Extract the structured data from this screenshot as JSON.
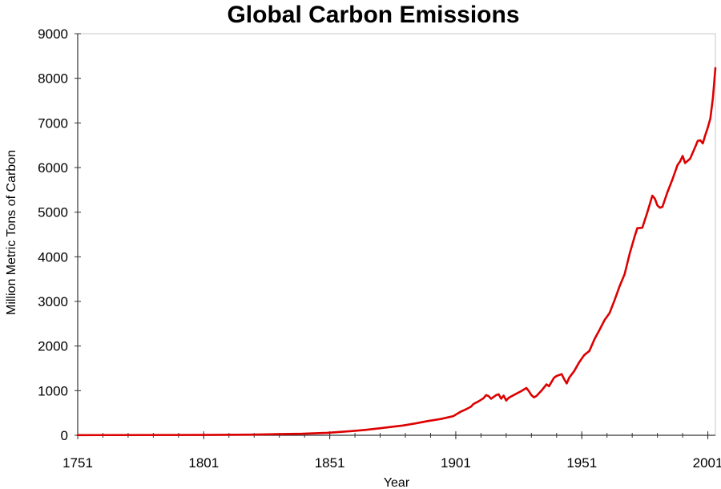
{
  "chart_data": {
    "type": "line",
    "title": "Global Carbon Emissions",
    "xlabel": "Year",
    "ylabel": "Million Metric Tons of Carbon",
    "xlim": [
      1751,
      2004
    ],
    "ylim": [
      0,
      9000
    ],
    "x_ticks": [
      1751,
      1801,
      1851,
      1901,
      1951,
      2001
    ],
    "y_ticks": [
      0,
      1000,
      2000,
      3000,
      4000,
      5000,
      6000,
      7000,
      8000,
      9000
    ],
    "grid": false,
    "legend": "none",
    "series": [
      {
        "color": "#dd0000",
        "x": [
          1751,
          1800,
          1820,
          1830,
          1840,
          1850,
          1855,
          1860,
          1865,
          1870,
          1875,
          1880,
          1885,
          1890,
          1895,
          1900,
          1903,
          1905,
          1907,
          1908,
          1910,
          1912,
          1913,
          1914,
          1915,
          1917,
          1918,
          1919,
          1920,
          1921,
          1922,
          1925,
          1927,
          1929,
          1930,
          1931,
          1932,
          1933,
          1935,
          1937,
          1938,
          1940,
          1941,
          1942,
          1943,
          1944,
          1945,
          1946,
          1948,
          1950,
          1952,
          1954,
          1956,
          1958,
          1960,
          1962,
          1964,
          1966,
          1968,
          1970,
          1972,
          1973,
          1975,
          1977,
          1979,
          1980,
          1981,
          1982,
          1983,
          1985,
          1987,
          1989,
          1990,
          1991,
          1992,
          1994,
          1996,
          1997,
          1998,
          1999,
          2000,
          2001,
          2002,
          2003,
          2004
        ],
        "values": [
          3,
          8,
          15,
          25,
          35,
          55,
          75,
          95,
          120,
          150,
          185,
          220,
          265,
          320,
          365,
          430,
          530,
          580,
          640,
          700,
          760,
          830,
          900,
          880,
          820,
          900,
          920,
          820,
          890,
          780,
          840,
          930,
          990,
          1060,
          990,
          900,
          850,
          880,
          1000,
          1140,
          1100,
          1290,
          1330,
          1350,
          1370,
          1260,
          1160,
          1290,
          1440,
          1640,
          1800,
          1890,
          2150,
          2360,
          2580,
          2740,
          3030,
          3340,
          3610,
          4070,
          4460,
          4640,
          4650,
          5000,
          5370,
          5300,
          5150,
          5100,
          5120,
          5450,
          5740,
          6060,
          6140,
          6260,
          6100,
          6200,
          6460,
          6600,
          6610,
          6540,
          6730,
          6900,
          7100,
          7560,
          8230
        ]
      }
    ]
  }
}
